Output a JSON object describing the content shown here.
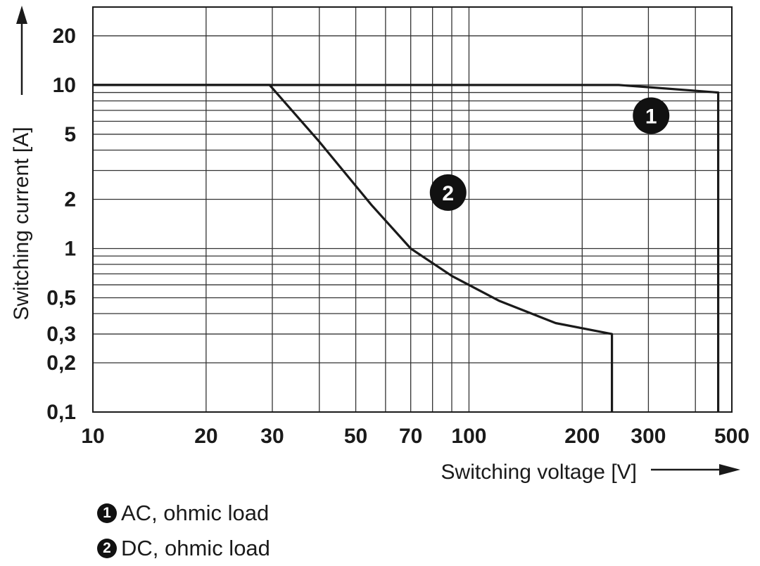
{
  "chart_data": {
    "type": "line",
    "xlabel": "Switching voltage [V]",
    "ylabel": "Switching current [A]",
    "xscale": "log",
    "yscale": "log",
    "xlim": [
      10,
      500
    ],
    "ylim": [
      0.1,
      30
    ],
    "x_ticks": [
      10,
      20,
      30,
      50,
      70,
      100,
      200,
      300,
      500
    ],
    "x_tick_labels": [
      "10",
      "20",
      "30",
      "50",
      "70",
      "100",
      "200",
      "300",
      "500"
    ],
    "y_ticks": [
      0.1,
      0.2,
      0.3,
      0.5,
      1,
      2,
      5,
      10,
      20
    ],
    "y_tick_labels": [
      "0,1",
      "0,2",
      "0,3",
      "0,5",
      "1",
      "2",
      "5",
      "10",
      "20"
    ],
    "grid": true,
    "series": [
      {
        "name": "AC, ohmic load",
        "marker_label": "1",
        "x": [
          10,
          250,
          300,
          460,
          460
        ],
        "y": [
          10,
          10,
          9.7,
          9,
          0.1
        ]
      },
      {
        "name": "DC, ohmic load",
        "marker_label": "2",
        "x": [
          10,
          29.5,
          40,
          55,
          70,
          90,
          120,
          170,
          240,
          240
        ],
        "y": [
          10,
          10,
          4.5,
          1.85,
          1.0,
          0.68,
          0.48,
          0.35,
          0.3,
          0.1
        ]
      }
    ],
    "legend": [
      {
        "marker": "1",
        "label": "AC, ohmic load"
      },
      {
        "marker": "2",
        "label": "DC, ohmic load"
      }
    ],
    "colors": {
      "line": "#1a1a1a",
      "grid": "#333333",
      "marker_bg": "#111111",
      "marker_fg": "#ffffff"
    }
  }
}
